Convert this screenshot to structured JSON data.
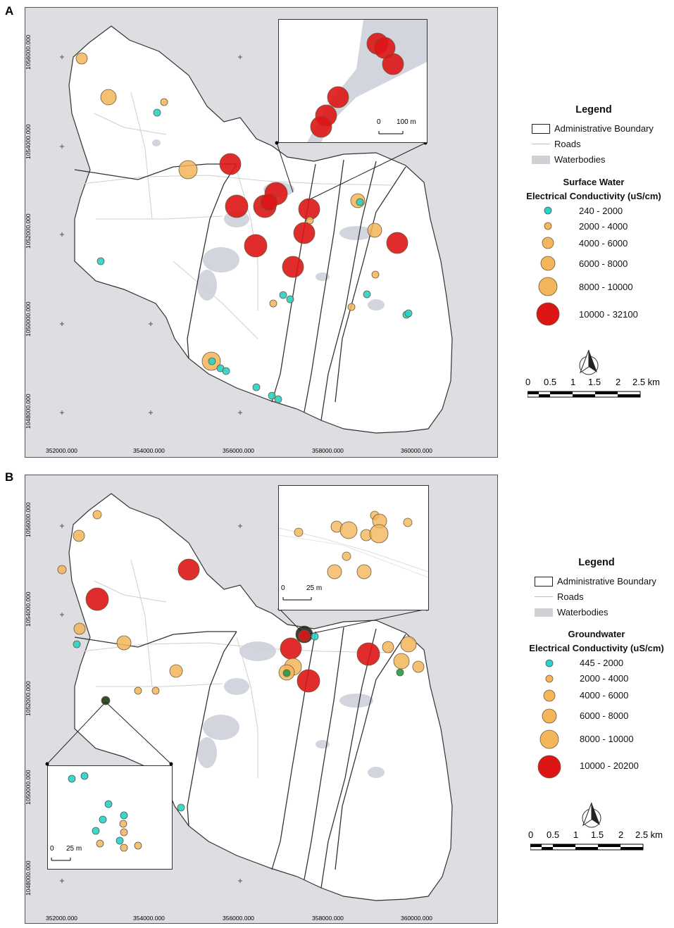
{
  "panels": [
    {
      "label": "A",
      "y_ticks": [
        "1056000.000",
        "1054000.000",
        "1052000.000",
        "1050000.000",
        "1048000.000"
      ],
      "x_ticks": [
        "352000.000",
        "354000.000",
        "356000.000",
        "358000.000",
        "360000.000"
      ],
      "inset_scale": {
        "zero": "0",
        "dist": "100 m"
      },
      "legend": {
        "title": "Legend",
        "boundary": "Administrative Boundary",
        "roads": "Roads",
        "waterbodies": "Waterbodies",
        "layer_title": "Surface Water",
        "layer_subtitle": "Electrical Conductivity (uS/cm)",
        "classes": [
          "240 - 2000",
          "2000 - 4000",
          "4000 - 6000",
          "6000 - 8000",
          "8000 - 10000",
          "10000 - 32100"
        ]
      },
      "scalebar": {
        "labels": [
          "0",
          "0.5",
          "1",
          "1.5",
          "2",
          "2.5 km"
        ]
      }
    },
    {
      "label": "B",
      "y_ticks": [
        "1056000.000",
        "1054000.000",
        "1052000.000",
        "1050000.000",
        "1048000.000"
      ],
      "x_ticks": [
        "352000.000",
        "354000.000",
        "356000.000",
        "358000.000",
        "360000.000"
      ],
      "inset_scale": {
        "zero": "0",
        "dist": "25 m"
      },
      "inset2_scale": {
        "zero": "0",
        "dist": "25 m"
      },
      "legend": {
        "title": "Legend",
        "boundary": "Administrative Boundary",
        "roads": "Roads",
        "waterbodies": "Waterbodies",
        "layer_title": "Groundwater",
        "layer_subtitle": "Electrical Conductivity (uS/cm)",
        "classes": [
          "445 - 2000",
          "2000 - 4000",
          "4000 - 6000",
          "6000 - 8000",
          "8000 - 10000",
          "10000 - 20200"
        ]
      },
      "scalebar": {
        "labels": [
          "0",
          "0.5",
          "1",
          "1.5",
          "2",
          "2.5 km"
        ]
      }
    }
  ],
  "colors": {
    "background": "#dedde2",
    "land": "#ffffff",
    "water": "#c9ccd6",
    "boundary": "#333333",
    "roads": "#cfcfcf",
    "class1": "#27d3c7",
    "class_orange": "#f5b55a",
    "class_red": "#dd1515"
  }
}
